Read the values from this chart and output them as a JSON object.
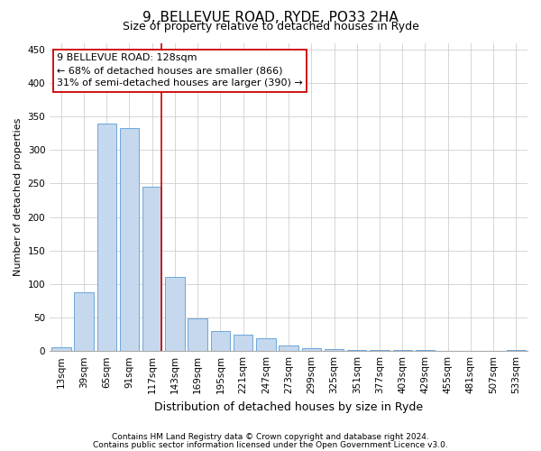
{
  "title": "9, BELLEVUE ROAD, RYDE, PO33 2HA",
  "subtitle": "Size of property relative to detached houses in Ryde",
  "xlabel": "Distribution of detached houses by size in Ryde",
  "ylabel": "Number of detached properties",
  "categories": [
    "13sqm",
    "39sqm",
    "65sqm",
    "91sqm",
    "117sqm",
    "143sqm",
    "169sqm",
    "195sqm",
    "221sqm",
    "247sqm",
    "273sqm",
    "299sqm",
    "325sqm",
    "351sqm",
    "377sqm",
    "403sqm",
    "429sqm",
    "455sqm",
    "481sqm",
    "507sqm",
    "533sqm"
  ],
  "values": [
    5,
    88,
    340,
    333,
    245,
    110,
    49,
    30,
    24,
    19,
    8,
    4,
    3,
    2,
    2,
    1,
    1,
    0,
    0,
    0,
    1
  ],
  "bar_color": "#c5d8ed",
  "bar_edge_color": "#5b9bd5",
  "vline_color": "#cc0000",
  "vline_position": 4.425,
  "annotation_line1": "9 BELLEVUE ROAD: 128sqm",
  "annotation_line2": "← 68% of detached houses are smaller (866)",
  "annotation_line3": "31% of semi-detached houses are larger (390) →",
  "annotation_box_color": "#cc0000",
  "annotation_bg": "#ffffff",
  "footer_line1": "Contains HM Land Registry data © Crown copyright and database right 2024.",
  "footer_line2": "Contains public sector information licensed under the Open Government Licence v3.0.",
  "ylim": [
    0,
    460
  ],
  "yticks": [
    0,
    50,
    100,
    150,
    200,
    250,
    300,
    350,
    400,
    450
  ],
  "background_color": "#ffffff",
  "grid_color": "#d0d0d0",
  "title_fontsize": 11,
  "subtitle_fontsize": 9,
  "ylabel_fontsize": 8,
  "xlabel_fontsize": 9,
  "tick_fontsize": 7.5,
  "footer_fontsize": 6.5,
  "annotation_fontsize": 8
}
